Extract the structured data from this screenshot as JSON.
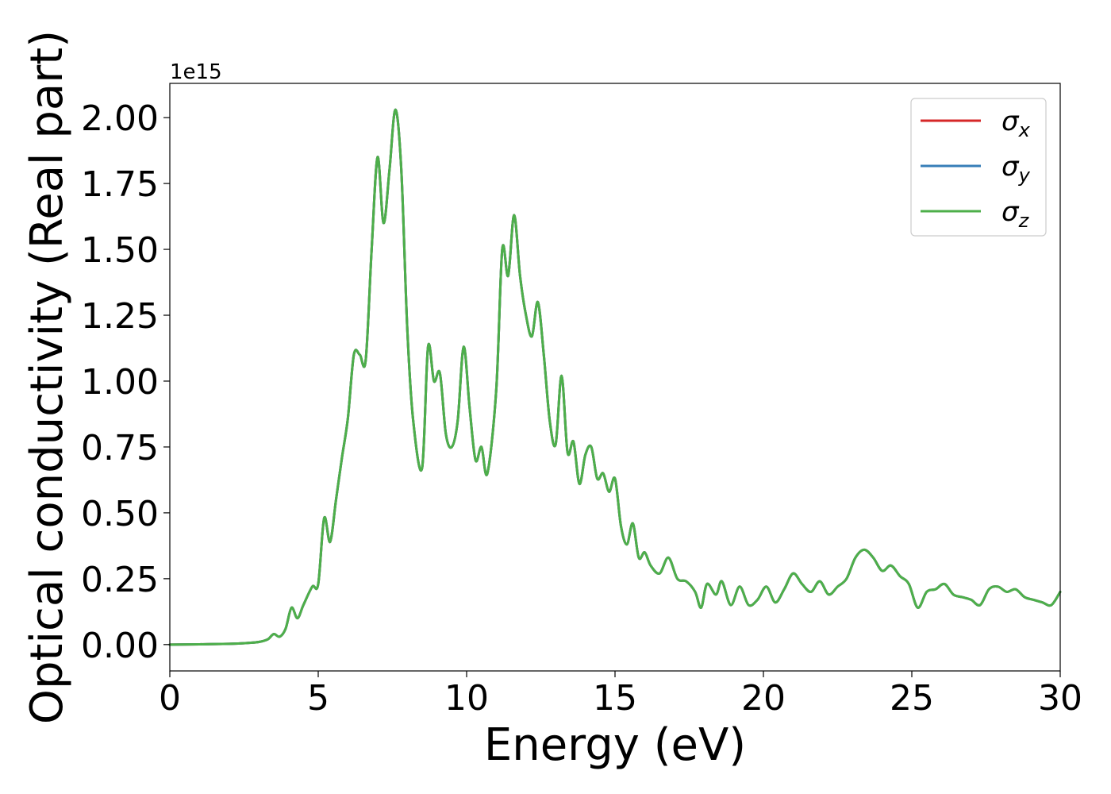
{
  "chart_data": {
    "type": "line",
    "xlabel": "Energy (eV)",
    "ylabel": "Optical conductivity (Real part)",
    "y_offset_label": "1e15",
    "xlim": [
      0,
      30
    ],
    "ylim": [
      -0.1,
      2.13
    ],
    "x_ticks": [
      0,
      5,
      10,
      15,
      20,
      25,
      30
    ],
    "x_tick_labels": [
      "0",
      "5",
      "10",
      "15",
      "20",
      "25",
      "30"
    ],
    "y_ticks": [
      0.0,
      0.25,
      0.5,
      0.75,
      1.0,
      1.25,
      1.5,
      1.75,
      2.0
    ],
    "y_tick_labels": [
      "0.00",
      "0.25",
      "0.50",
      "0.75",
      "1.00",
      "1.25",
      "1.50",
      "1.75",
      "2.00"
    ],
    "grid": false,
    "legend_position": "top-right",
    "series": [
      {
        "name": "σx",
        "legend_base": "σ",
        "legend_sub": "x",
        "color": "#d62728",
        "x": [
          0,
          1,
          2,
          2.6,
          3,
          3.3,
          3.5,
          3.7,
          3.9,
          4.1,
          4.3,
          4.5,
          4.8,
          5.0,
          5.2,
          5.4,
          5.6,
          5.8,
          6.0,
          6.2,
          6.4,
          6.6,
          6.8,
          7.0,
          7.2,
          7.4,
          7.6,
          7.8,
          8.0,
          8.2,
          8.5,
          8.7,
          8.9,
          9.1,
          9.3,
          9.5,
          9.7,
          9.9,
          10.1,
          10.3,
          10.5,
          10.7,
          11.0,
          11.2,
          11.4,
          11.6,
          11.8,
          12.0,
          12.2,
          12.4,
          12.6,
          12.8,
          13.0,
          13.2,
          13.4,
          13.6,
          13.8,
          14.0,
          14.2,
          14.4,
          14.6,
          14.8,
          15.0,
          15.2,
          15.4,
          15.6,
          15.8,
          16.0,
          16.2,
          16.5,
          16.8,
          17.1,
          17.4,
          17.7,
          17.9,
          18.1,
          18.4,
          18.6,
          18.9,
          19.2,
          19.5,
          19.8,
          20.1,
          20.4,
          20.7,
          21.0,
          21.3,
          21.6,
          21.9,
          22.2,
          22.5,
          22.8,
          23.1,
          23.4,
          23.7,
          24.0,
          24.3,
          24.6,
          24.9,
          25.2,
          25.5,
          25.8,
          26.1,
          26.4,
          26.7,
          27.0,
          27.3,
          27.6,
          27.9,
          28.2,
          28.5,
          28.8,
          29.1,
          29.4,
          29.7,
          30
        ],
        "y": [
          0,
          0.001,
          0.003,
          0.006,
          0.01,
          0.02,
          0.04,
          0.03,
          0.06,
          0.14,
          0.1,
          0.15,
          0.22,
          0.23,
          0.48,
          0.39,
          0.55,
          0.71,
          0.86,
          1.1,
          1.1,
          1.08,
          1.5,
          1.85,
          1.6,
          1.8,
          2.03,
          1.8,
          1.2,
          0.85,
          0.67,
          1.13,
          1.0,
          1.03,
          0.8,
          0.75,
          0.85,
          1.13,
          0.9,
          0.7,
          0.75,
          0.65,
          0.97,
          1.5,
          1.4,
          1.63,
          1.4,
          1.25,
          1.17,
          1.3,
          1.1,
          0.85,
          0.76,
          1.02,
          0.73,
          0.77,
          0.61,
          0.72,
          0.75,
          0.63,
          0.65,
          0.58,
          0.63,
          0.45,
          0.38,
          0.46,
          0.33,
          0.35,
          0.3,
          0.27,
          0.33,
          0.25,
          0.24,
          0.2,
          0.14,
          0.23,
          0.19,
          0.24,
          0.15,
          0.22,
          0.15,
          0.17,
          0.22,
          0.16,
          0.21,
          0.27,
          0.23,
          0.2,
          0.24,
          0.19,
          0.22,
          0.25,
          0.33,
          0.36,
          0.33,
          0.28,
          0.3,
          0.26,
          0.23,
          0.14,
          0.2,
          0.21,
          0.23,
          0.19,
          0.18,
          0.17,
          0.15,
          0.21,
          0.22,
          0.2,
          0.21,
          0.18,
          0.17,
          0.16,
          0.15,
          0.2
        ]
      },
      {
        "name": "σy",
        "legend_base": "σ",
        "legend_sub": "y",
        "color": "#377eb8",
        "x": [
          0,
          1,
          2,
          2.6,
          3,
          3.3,
          3.5,
          3.7,
          3.9,
          4.1,
          4.3,
          4.5,
          4.8,
          5.0,
          5.2,
          5.4,
          5.6,
          5.8,
          6.0,
          6.2,
          6.4,
          6.6,
          6.8,
          7.0,
          7.2,
          7.4,
          7.6,
          7.8,
          8.0,
          8.2,
          8.5,
          8.7,
          8.9,
          9.1,
          9.3,
          9.5,
          9.7,
          9.9,
          10.1,
          10.3,
          10.5,
          10.7,
          11.0,
          11.2,
          11.4,
          11.6,
          11.8,
          12.0,
          12.2,
          12.4,
          12.6,
          12.8,
          13.0,
          13.2,
          13.4,
          13.6,
          13.8,
          14.0,
          14.2,
          14.4,
          14.6,
          14.8,
          15.0,
          15.2,
          15.4,
          15.6,
          15.8,
          16.0,
          16.2,
          16.5,
          16.8,
          17.1,
          17.4,
          17.7,
          17.9,
          18.1,
          18.4,
          18.6,
          18.9,
          19.2,
          19.5,
          19.8,
          20.1,
          20.4,
          20.7,
          21.0,
          21.3,
          21.6,
          21.9,
          22.2,
          22.5,
          22.8,
          23.1,
          23.4,
          23.7,
          24.0,
          24.3,
          24.6,
          24.9,
          25.2,
          25.5,
          25.8,
          26.1,
          26.4,
          26.7,
          27.0,
          27.3,
          27.6,
          27.9,
          28.2,
          28.5,
          28.8,
          29.1,
          29.4,
          29.7,
          30
        ],
        "y": [
          0,
          0.001,
          0.003,
          0.006,
          0.01,
          0.02,
          0.04,
          0.03,
          0.06,
          0.14,
          0.1,
          0.15,
          0.22,
          0.23,
          0.48,
          0.39,
          0.55,
          0.71,
          0.86,
          1.1,
          1.1,
          1.08,
          1.5,
          1.85,
          1.6,
          1.8,
          2.03,
          1.8,
          1.2,
          0.85,
          0.67,
          1.13,
          1.0,
          1.03,
          0.8,
          0.75,
          0.85,
          1.13,
          0.9,
          0.7,
          0.75,
          0.65,
          0.97,
          1.5,
          1.4,
          1.63,
          1.4,
          1.25,
          1.17,
          1.3,
          1.1,
          0.85,
          0.76,
          1.02,
          0.73,
          0.77,
          0.61,
          0.72,
          0.75,
          0.63,
          0.65,
          0.58,
          0.63,
          0.45,
          0.38,
          0.46,
          0.33,
          0.35,
          0.3,
          0.27,
          0.33,
          0.25,
          0.24,
          0.2,
          0.14,
          0.23,
          0.19,
          0.24,
          0.15,
          0.22,
          0.15,
          0.17,
          0.22,
          0.16,
          0.21,
          0.27,
          0.23,
          0.2,
          0.24,
          0.19,
          0.22,
          0.25,
          0.33,
          0.36,
          0.33,
          0.28,
          0.3,
          0.26,
          0.23,
          0.14,
          0.2,
          0.21,
          0.23,
          0.19,
          0.18,
          0.17,
          0.15,
          0.21,
          0.22,
          0.2,
          0.21,
          0.18,
          0.17,
          0.16,
          0.15,
          0.2
        ]
      },
      {
        "name": "σz",
        "legend_base": "σ",
        "legend_sub": "z",
        "color": "#4daf4a",
        "x": [
          0,
          1,
          2,
          2.6,
          3,
          3.3,
          3.5,
          3.7,
          3.9,
          4.1,
          4.3,
          4.5,
          4.8,
          5.0,
          5.2,
          5.4,
          5.6,
          5.8,
          6.0,
          6.2,
          6.4,
          6.6,
          6.8,
          7.0,
          7.2,
          7.4,
          7.6,
          7.8,
          8.0,
          8.2,
          8.5,
          8.7,
          8.9,
          9.1,
          9.3,
          9.5,
          9.7,
          9.9,
          10.1,
          10.3,
          10.5,
          10.7,
          11.0,
          11.2,
          11.4,
          11.6,
          11.8,
          12.0,
          12.2,
          12.4,
          12.6,
          12.8,
          13.0,
          13.2,
          13.4,
          13.6,
          13.8,
          14.0,
          14.2,
          14.4,
          14.6,
          14.8,
          15.0,
          15.2,
          15.4,
          15.6,
          15.8,
          16.0,
          16.2,
          16.5,
          16.8,
          17.1,
          17.4,
          17.7,
          17.9,
          18.1,
          18.4,
          18.6,
          18.9,
          19.2,
          19.5,
          19.8,
          20.1,
          20.4,
          20.7,
          21.0,
          21.3,
          21.6,
          21.9,
          22.2,
          22.5,
          22.8,
          23.1,
          23.4,
          23.7,
          24.0,
          24.3,
          24.6,
          24.9,
          25.2,
          25.5,
          25.8,
          26.1,
          26.4,
          26.7,
          27.0,
          27.3,
          27.6,
          27.9,
          28.2,
          28.5,
          28.8,
          29.1,
          29.4,
          29.7,
          30
        ],
        "y": [
          0,
          0.001,
          0.003,
          0.006,
          0.01,
          0.02,
          0.04,
          0.03,
          0.06,
          0.14,
          0.1,
          0.15,
          0.22,
          0.23,
          0.48,
          0.39,
          0.55,
          0.71,
          0.86,
          1.1,
          1.1,
          1.08,
          1.5,
          1.85,
          1.6,
          1.8,
          2.03,
          1.8,
          1.2,
          0.85,
          0.67,
          1.13,
          1.0,
          1.03,
          0.8,
          0.75,
          0.85,
          1.13,
          0.9,
          0.7,
          0.75,
          0.65,
          0.97,
          1.5,
          1.4,
          1.63,
          1.4,
          1.25,
          1.17,
          1.3,
          1.1,
          0.85,
          0.76,
          1.02,
          0.73,
          0.77,
          0.61,
          0.72,
          0.75,
          0.63,
          0.65,
          0.58,
          0.63,
          0.45,
          0.38,
          0.46,
          0.33,
          0.35,
          0.3,
          0.27,
          0.33,
          0.25,
          0.24,
          0.2,
          0.14,
          0.23,
          0.19,
          0.24,
          0.15,
          0.22,
          0.15,
          0.17,
          0.22,
          0.16,
          0.21,
          0.27,
          0.23,
          0.2,
          0.24,
          0.19,
          0.22,
          0.25,
          0.33,
          0.36,
          0.33,
          0.28,
          0.3,
          0.26,
          0.23,
          0.14,
          0.2,
          0.21,
          0.23,
          0.19,
          0.18,
          0.17,
          0.15,
          0.21,
          0.22,
          0.2,
          0.21,
          0.18,
          0.17,
          0.16,
          0.15,
          0.2
        ]
      }
    ]
  }
}
